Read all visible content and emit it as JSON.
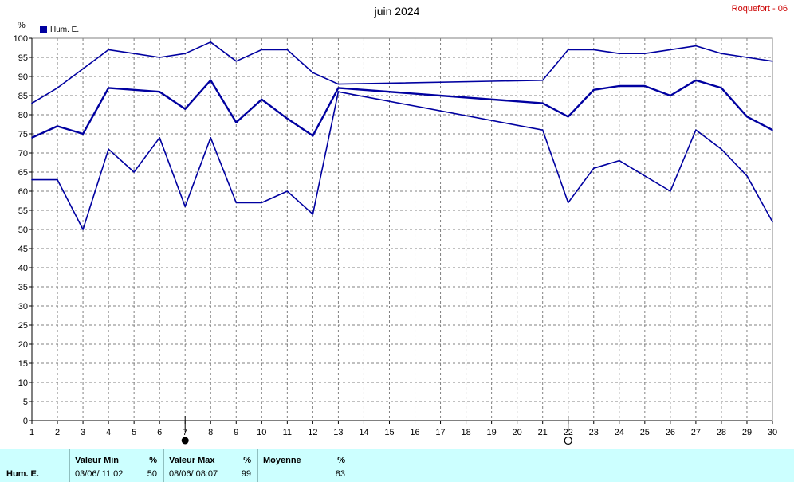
{
  "title": "juin 2024",
  "station": "Roquefort - 06",
  "unit_label": "%",
  "legend": {
    "label": "Hum. E.",
    "color": "#0000a0"
  },
  "moon": {
    "new_moon_day": 7,
    "full_moon_day": 22
  },
  "chart_data": {
    "type": "line",
    "title": "juin 2024",
    "ylabel": "%",
    "xlim": [
      1,
      30
    ],
    "ylim": [
      0,
      100
    ],
    "yticks": [
      0,
      5,
      10,
      15,
      20,
      25,
      30,
      35,
      40,
      45,
      50,
      55,
      60,
      65,
      70,
      75,
      80,
      85,
      90,
      95,
      100
    ],
    "xticks": [
      1,
      2,
      3,
      4,
      5,
      6,
      7,
      8,
      9,
      10,
      11,
      12,
      13,
      14,
      15,
      16,
      17,
      18,
      19,
      20,
      21,
      22,
      23,
      24,
      25,
      26,
      27,
      28,
      29,
      30
    ],
    "grid": true,
    "legend_position": "top-left",
    "color": "#0000a0",
    "series": [
      {
        "name": "Hum. E.",
        "role": "max",
        "points": [
          [
            1,
            83
          ],
          [
            2,
            87
          ],
          [
            3,
            92
          ],
          [
            4,
            97
          ],
          [
            5,
            96
          ],
          [
            6,
            95
          ],
          [
            7,
            96
          ],
          [
            8,
            99
          ],
          [
            9,
            94
          ],
          [
            10,
            97
          ],
          [
            11,
            97
          ],
          [
            12,
            91
          ],
          [
            13,
            88
          ],
          [
            21,
            89
          ],
          [
            22,
            97
          ],
          [
            23,
            97
          ],
          [
            24,
            96
          ],
          [
            25,
            96
          ],
          [
            26,
            97
          ],
          [
            27,
            98
          ],
          [
            28,
            96
          ],
          [
            29,
            95
          ],
          [
            30,
            94
          ]
        ]
      },
      {
        "name": "Hum. E.",
        "role": "mean",
        "points": [
          [
            1,
            74
          ],
          [
            2,
            77
          ],
          [
            3,
            75
          ],
          [
            4,
            87
          ],
          [
            5,
            86.5
          ],
          [
            6,
            86
          ],
          [
            7,
            81.5
          ],
          [
            8,
            89
          ],
          [
            9,
            78
          ],
          [
            10,
            84
          ],
          [
            11,
            79
          ],
          [
            12,
            74.5
          ],
          [
            13,
            87
          ],
          [
            21,
            83
          ],
          [
            22,
            79.5
          ],
          [
            23,
            86.5
          ],
          [
            24,
            87.5
          ],
          [
            25,
            87.5
          ],
          [
            26,
            85
          ],
          [
            27,
            89
          ],
          [
            28,
            87
          ],
          [
            29,
            79.5
          ],
          [
            30,
            76
          ]
        ]
      },
      {
        "name": "Hum. E.",
        "role": "min",
        "points": [
          [
            1,
            63
          ],
          [
            2,
            63
          ],
          [
            3,
            50
          ],
          [
            4,
            71
          ],
          [
            5,
            65
          ],
          [
            6,
            74
          ],
          [
            7,
            56
          ],
          [
            8,
            74
          ],
          [
            9,
            57
          ],
          [
            10,
            57
          ],
          [
            11,
            60
          ],
          [
            12,
            54
          ],
          [
            13,
            86
          ],
          [
            21,
            76
          ],
          [
            22,
            57
          ],
          [
            23,
            66
          ],
          [
            24,
            68
          ],
          [
            25,
            64
          ],
          [
            26,
            60
          ],
          [
            27,
            76
          ],
          [
            28,
            71
          ],
          [
            29,
            64
          ],
          [
            30,
            52
          ]
        ]
      }
    ]
  },
  "footer": {
    "series_label": "Hum. E.",
    "min": {
      "header": "Valeur Min",
      "unit": "%",
      "when": "03/06/  11:02",
      "value": "50"
    },
    "max": {
      "header": "Valeur Max",
      "unit": "%",
      "when": "08/06/  08:07",
      "value": "99"
    },
    "avg": {
      "header": "Moyenne",
      "unit": "%",
      "value": "83"
    }
  }
}
